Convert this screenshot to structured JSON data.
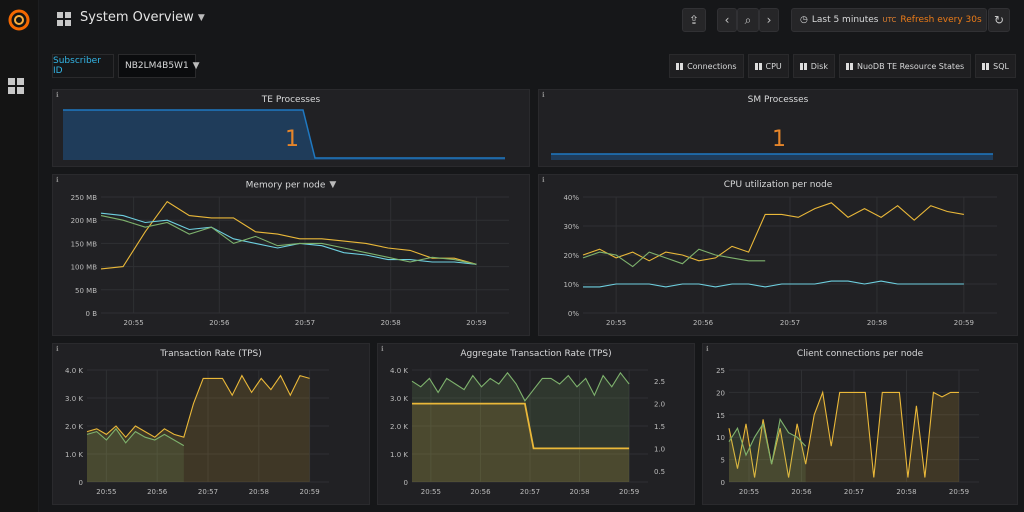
{
  "header": {
    "title": "System Overview",
    "time_range": "Last 5 minutes",
    "timezone": "UTC",
    "refresh": "Refresh every 30s"
  },
  "variables": {
    "label": "Subscriber ID",
    "value": "NB2LM4B5W1"
  },
  "links": [
    "Connections",
    "CPU",
    "Disk",
    "NuoDB TE Resource States",
    "SQL"
  ],
  "colors": {
    "yellow": "#eab839",
    "green": "#7eb26d",
    "blue": "#6ed0e0",
    "orange": "#e5852a",
    "stat_blue": "#1f78c1"
  },
  "panels": {
    "te": {
      "title": "TE Processes",
      "value": "1"
    },
    "sm": {
      "title": "SM Processes",
      "value": "1"
    },
    "memory": {
      "title": "Memory per node"
    },
    "cpu": {
      "title": "CPU utilization per node"
    },
    "tps": {
      "title": "Transaction Rate (TPS)"
    },
    "agg": {
      "title": "Aggregate Transaction Rate (TPS)"
    },
    "clients": {
      "title": "Client connections per node"
    }
  },
  "chart_data": [
    {
      "type": "line",
      "id": "memory",
      "title": "Memory per node",
      "x_ticks": [
        "20:55",
        "20:56",
        "20:57",
        "20:58",
        "20:59"
      ],
      "y_ticks": [
        "0 B",
        "50 MB",
        "100 MB",
        "150 MB",
        "200 MB",
        "250 MB"
      ],
      "ylim": [
        0,
        250
      ],
      "series": [
        {
          "color": "#eab839",
          "values": [
            95,
            100,
            175,
            240,
            210,
            205,
            205,
            175,
            170,
            160,
            160,
            155,
            150,
            140,
            135,
            118,
            118,
            105
          ]
        },
        {
          "color": "#6ed0e0",
          "values": [
            215,
            210,
            195,
            200,
            180,
            185,
            160,
            150,
            140,
            150,
            145,
            130,
            125,
            115,
            115,
            110,
            110,
            105
          ]
        },
        {
          "color": "#7eb26d",
          "values": [
            210,
            200,
            185,
            195,
            170,
            185,
            150,
            165,
            145,
            150,
            150,
            140,
            130,
            120,
            110,
            120,
            115,
            105
          ]
        }
      ]
    },
    {
      "type": "line",
      "id": "cpu",
      "title": "CPU utilization per node",
      "x_ticks": [
        "20:55",
        "20:56",
        "20:57",
        "20:58",
        "20:59"
      ],
      "y_ticks": [
        "0%",
        "10%",
        "20%",
        "30%",
        "40%"
      ],
      "ylim": [
        0,
        40
      ],
      "series": [
        {
          "color": "#eab839",
          "values": [
            20,
            22,
            19,
            21,
            18,
            21,
            20,
            18,
            19,
            23,
            21,
            34,
            34,
            33,
            36,
            38,
            33,
            36,
            33,
            37,
            32,
            37,
            35,
            34
          ]
        },
        {
          "color": "#7eb26d",
          "values": [
            19,
            21,
            20,
            16,
            21,
            19,
            17,
            22,
            20,
            19,
            18,
            18
          ]
        },
        {
          "color": "#6ed0e0",
          "values": [
            9,
            9,
            10,
            10,
            10,
            9,
            10,
            10,
            9,
            10,
            10,
            9,
            10,
            10,
            10,
            11,
            11,
            10,
            11,
            10,
            10,
            10,
            10,
            10
          ]
        }
      ]
    },
    {
      "type": "area",
      "id": "tps",
      "title": "Transaction Rate (TPS)",
      "x_ticks": [
        "20:55",
        "20:56",
        "20:57",
        "20:58",
        "20:59"
      ],
      "y_ticks": [
        "0",
        "1.0 K",
        "2.0 K",
        "3.0 K",
        "4.0 K"
      ],
      "ylim": [
        0,
        4000
      ],
      "series": [
        {
          "color": "#eab839",
          "values": [
            1800,
            1900,
            1700,
            2000,
            1600,
            2000,
            1800,
            1600,
            1900,
            1700,
            1600,
            2800,
            3700,
            3700,
            3700,
            3100,
            3800,
            3200,
            3700,
            3300,
            3800,
            3100,
            3800,
            3700
          ]
        },
        {
          "color": "#7eb26d",
          "values": [
            1700,
            1800,
            1500,
            1900,
            1400,
            1800,
            1600,
            1500,
            1700,
            1500,
            1300
          ]
        }
      ]
    },
    {
      "type": "area",
      "id": "agg",
      "title": "Aggregate Transaction Rate (TPS)",
      "x_ticks": [
        "20:55",
        "20:56",
        "20:57",
        "20:58",
        "20:59"
      ],
      "y_ticks": [
        "0",
        "1.0 K",
        "2.0 K",
        "3.0 K",
        "4.0 K"
      ],
      "y2_ticks": [
        "0.5",
        "1.0",
        "1.5",
        "2.0",
        "2.5"
      ],
      "ylim": [
        0,
        4000
      ],
      "series": [
        {
          "color": "#7eb26d",
          "values": [
            3600,
            3400,
            3700,
            3200,
            3700,
            3500,
            3300,
            3800,
            3400,
            3700,
            3500,
            3900,
            3500,
            2900,
            3300,
            3700,
            3700,
            3500,
            3800,
            3400,
            3700,
            3100,
            3800,
            3400,
            3900,
            3500
          ]
        },
        {
          "color": "#eab839",
          "axis": "right",
          "values": [
            2,
            2,
            2,
            2,
            2,
            2,
            2,
            2,
            2,
            2,
            2,
            2,
            2,
            2,
            1,
            1,
            1,
            1,
            1,
            1,
            1,
            1,
            1,
            1,
            1,
            1
          ]
        }
      ]
    },
    {
      "type": "area",
      "id": "clients",
      "title": "Client connections per node",
      "x_ticks": [
        "20:55",
        "20:56",
        "20:57",
        "20:58",
        "20:59"
      ],
      "y_ticks": [
        "0",
        "5",
        "10",
        "15",
        "20",
        "25"
      ],
      "ylim": [
        0,
        25
      ],
      "series": [
        {
          "color": "#eab839",
          "values": [
            12,
            3,
            13,
            1,
            14,
            4,
            12,
            1,
            13,
            4,
            15,
            20,
            8,
            20,
            20,
            20,
            20,
            1,
            20,
            20,
            20,
            1,
            17,
            1,
            20,
            19,
            20,
            20
          ]
        },
        {
          "color": "#7eb26d",
          "values": [
            9,
            12,
            6,
            10,
            13,
            4,
            14,
            11,
            10,
            8
          ]
        }
      ]
    }
  ]
}
